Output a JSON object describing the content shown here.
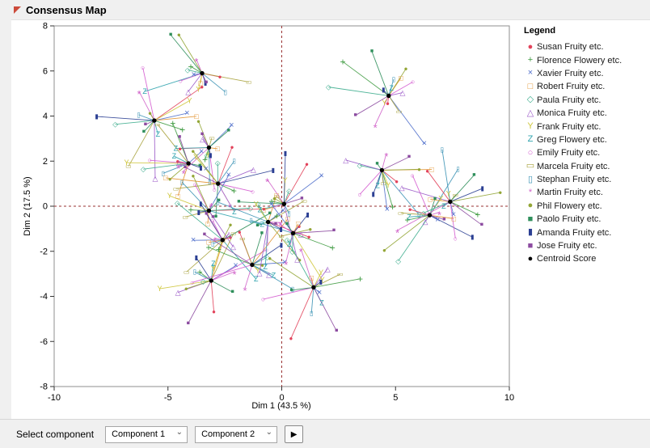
{
  "window": {
    "title": "Consensus Map"
  },
  "icons": {
    "disclosure": "⌄",
    "dropdown_chevron": "⌄",
    "apply": "▶"
  },
  "legend": {
    "title": "Legend"
  },
  "controls": {
    "label": "Select component",
    "component1": "Component 1",
    "component2": "Component 2"
  },
  "chart_data": {
    "type": "scatter",
    "title": "Consensus Map",
    "xlabel": "Dim 1  (43.5 %)",
    "ylabel": "Dim 2  (17.5 %)",
    "xlim": [
      -10,
      10
    ],
    "ylim": [
      -8,
      8
    ],
    "xticks": [
      -10,
      -5,
      0,
      5,
      10
    ],
    "yticks": [
      -8,
      -6,
      -4,
      -2,
      0,
      2,
      4,
      6,
      8
    ],
    "grid": false,
    "legend_position": "right",
    "reference_lines": {
      "x": 0,
      "y": 0,
      "color": "#9a3333",
      "style": "dashed"
    },
    "series": [
      {
        "name": "Susan Fruity etc.",
        "color": "#e2425a",
        "marker": "●"
      },
      {
        "name": "Florence Flowery etc.",
        "color": "#3f9b41",
        "marker": "+"
      },
      {
        "name": "Xavier Fruity etc.",
        "color": "#5271cc",
        "marker": "×"
      },
      {
        "name": "Robert Fruity etc.",
        "color": "#e2932f",
        "marker": "□"
      },
      {
        "name": "Paula Fruity etc.",
        "color": "#3fae8f",
        "marker": "◇"
      },
      {
        "name": "Monica Fruity etc.",
        "color": "#9b59c8",
        "marker": "△"
      },
      {
        "name": "Frank Fruity etc.",
        "color": "#cfc63a",
        "marker": "Y"
      },
      {
        "name": "Greg Flowery etc.",
        "color": "#2fa3ae",
        "marker": "Z"
      },
      {
        "name": "Emily Fruity etc.",
        "color": "#d45bd0",
        "marker": "○"
      },
      {
        "name": "Marcela Fruity etc.",
        "color": "#a8a23c",
        "marker": "▭"
      },
      {
        "name": "Stephan Fruity etc.",
        "color": "#3a92b4",
        "marker": "▯"
      },
      {
        "name": "Martin Fruity etc.",
        "color": "#d163c9",
        "marker": "*"
      },
      {
        "name": "Phil Flowery etc.",
        "color": "#93a636",
        "marker": "●"
      },
      {
        "name": "Paolo Fruity etc.",
        "color": "#2f8f5b",
        "marker": "■"
      },
      {
        "name": "Amanda Fruity etc.",
        "color": "#2b3f93",
        "marker": "▮"
      },
      {
        "name": "Jose Fruity etc.",
        "color": "#8c4ba0",
        "marker": "■"
      }
    ],
    "centroid": {
      "label": "Centroid Score",
      "color": "#000000",
      "marker": "●"
    },
    "centroids": [
      [
        -5.6,
        3.8
      ],
      [
        -4.1,
        1.9
      ],
      [
        -3.2,
        2.6
      ],
      [
        -2.8,
        1.0
      ],
      [
        -3.2,
        -0.2
      ],
      [
        -2.6,
        -1.5
      ],
      [
        -3.1,
        -3.3
      ],
      [
        -1.3,
        -2.6
      ],
      [
        -0.6,
        -0.7
      ],
      [
        0.1,
        0.1
      ],
      [
        0.5,
        -1.2
      ],
      [
        1.4,
        -3.6
      ],
      [
        -3.5,
        5.9
      ],
      [
        4.7,
        4.9
      ],
      [
        4.4,
        1.6
      ],
      [
        6.5,
        -0.4
      ],
      [
        7.4,
        0.2
      ]
    ]
  }
}
